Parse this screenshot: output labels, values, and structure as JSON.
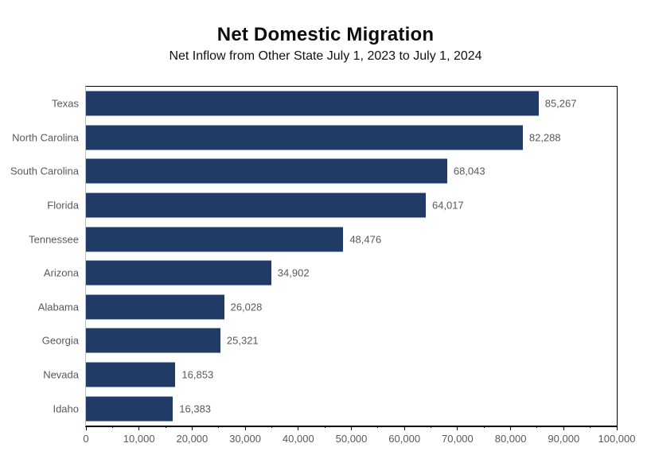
{
  "header": {
    "title": "Net Domestic Migration",
    "subtitle": "Net Inflow from Other State July 1, 2023 to July 1, 2024"
  },
  "colors": {
    "bar": "#1F3B66",
    "label_gray": "#595959",
    "axis_black": "#000000",
    "category_axis_gray": "#BFBFBF",
    "background": "#FFFFFF"
  },
  "chart_data": {
    "type": "bar",
    "orientation": "horizontal",
    "title": "Net Domestic Migration",
    "subtitle": "Net Inflow from Other State July 1, 2023 to July 1, 2024",
    "categories": [
      "Texas",
      "North Carolina",
      "South Carolina",
      "Florida",
      "Tennessee",
      "Arizona",
      "Alabama",
      "Georgia",
      "Nevada",
      "Idaho"
    ],
    "values": [
      85267,
      82288,
      68043,
      64017,
      48476,
      34902,
      26028,
      25321,
      16853,
      16383
    ],
    "value_labels": [
      "85,267",
      "82,288",
      "68,043",
      "64,017",
      "48,476",
      "34,902",
      "26,028",
      "25,321",
      "16,853",
      "16,383"
    ],
    "xlim": [
      0,
      100000
    ],
    "x_major_tick": 10000,
    "x_minor_tick": 5000,
    "x_tick_labels": [
      "0",
      "10,000",
      "20,000",
      "30,000",
      "40,000",
      "50,000",
      "60,000",
      "70,000",
      "80,000",
      "90,000",
      "100,000"
    ],
    "xlabel": "",
    "ylabel": "",
    "grid": false,
    "legend": false,
    "data_labels": "outside-end"
  }
}
